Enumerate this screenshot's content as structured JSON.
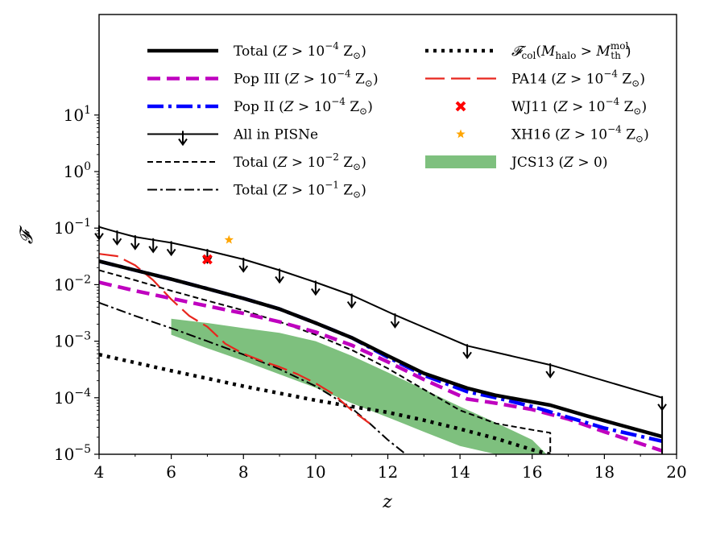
{
  "chart_data": {
    "type": "line",
    "xlabel": "z",
    "ylabel": "𝓕",
    "xlim": [
      4,
      20
    ],
    "ylim": [
      1e-05,
      600
    ],
    "yscale": "log",
    "x_ticks": [
      4,
      6,
      8,
      10,
      12,
      14,
      16,
      18,
      20
    ],
    "x_tick_labels": [
      "4",
      "6",
      "8",
      "10",
      "12",
      "14",
      "16",
      "18",
      "20"
    ],
    "y_ticks": [
      1e-05,
      0.0001,
      0.001,
      0.01,
      0.1,
      1,
      10
    ],
    "y_tick_labels": [
      {
        "base": "10",
        "exp": "−5"
      },
      {
        "base": "10",
        "exp": "−4"
      },
      {
        "base": "10",
        "exp": "−3"
      },
      {
        "base": "10",
        "exp": "−2"
      },
      {
        "base": "10",
        "exp": "−1"
      },
      {
        "base": "10",
        "exp": "0"
      },
      {
        "base": "10",
        "exp": "1"
      }
    ],
    "grid": false,
    "legend_position": "top (two columns)",
    "series": [
      {
        "name": "Total (Z > 10⁻⁴ Z☉)",
        "label": {
          "main": "Total (",
          "var": "Z",
          "rel": " > 10",
          "exp": "−4",
          "unit": " Z",
          "sub": "⊙",
          "close": ")"
        },
        "style": "solid-thick",
        "color": "#000000",
        "x": [
          4,
          5,
          6,
          7,
          8,
          9,
          10,
          11,
          12,
          13,
          14.2,
          15,
          16.5,
          17.5,
          18.5,
          19.6
        ],
        "y": [
          0.026,
          0.018,
          0.0125,
          0.0085,
          0.0057,
          0.0037,
          0.0021,
          0.00115,
          0.00055,
          0.00027,
          0.000148,
          0.00011,
          7.4e-05,
          4.8e-05,
          3.2e-05,
          2.05e-05
        ]
      },
      {
        "name": "Pop III (Z > 10⁻⁴ Z☉)",
        "label": {
          "main": "Pop III (",
          "var": "Z",
          "rel": " > 10",
          "exp": "−4",
          "unit": " Z",
          "sub": "⊙",
          "close": ")"
        },
        "style": "dashed-thick",
        "color": "#bf00bf",
        "x": [
          4,
          5,
          6,
          7,
          8,
          9,
          10,
          11,
          12,
          13,
          14.2,
          15,
          16,
          17,
          18,
          19.6
        ],
        "y": [
          0.011,
          0.0078,
          0.0057,
          0.0042,
          0.0031,
          0.0022,
          0.00145,
          0.00085,
          0.00043,
          0.00021,
          9.5e-05,
          8e-05,
          6.2e-05,
          4.2e-05,
          2.5e-05,
          1.15e-05
        ]
      },
      {
        "name": "Pop II (Z > 10⁻⁴ Z☉)",
        "label": {
          "main": "Pop II (",
          "var": "Z",
          "rel": " > 10",
          "exp": "−4",
          "unit": " Z",
          "sub": "⊙",
          "close": ")"
        },
        "style": "dashdot-thick",
        "color": "#0000ff",
        "x": [
          4,
          5,
          6,
          7,
          8,
          9,
          10,
          11,
          12,
          13,
          14.2,
          15,
          16,
          17,
          18,
          19.6
        ],
        "y": [
          0.026,
          0.018,
          0.0125,
          0.0085,
          0.0057,
          0.0037,
          0.0021,
          0.00115,
          0.00052,
          0.00025,
          0.000128,
          0.0001,
          7e-05,
          4.5e-05,
          2.9e-05,
          1.7e-05
        ]
      },
      {
        "name": "All in PISNe",
        "label": {
          "main": "All in PISNe"
        },
        "style": "solid-arrows",
        "color": "#000000",
        "x": [
          4,
          4.5,
          5,
          5.5,
          6,
          7,
          8,
          9,
          10,
          11,
          12.2,
          14.2,
          16.5,
          19.6
        ],
        "y": [
          0.105,
          0.085,
          0.07,
          0.062,
          0.055,
          0.04,
          0.028,
          0.018,
          0.011,
          0.0065,
          0.0029,
          0.00083,
          0.00038,
          0.0001
        ]
      },
      {
        "name": "Total (Z > 10⁻² Z☉)",
        "label": {
          "main": "Total (",
          "var": "Z",
          "rel": " > 10",
          "exp": "−2",
          "unit": " Z",
          "sub": "⊙",
          "close": ")"
        },
        "style": "dashed-thin",
        "color": "#000000",
        "x": [
          4,
          5,
          6,
          7,
          8,
          9,
          10,
          11,
          12,
          13,
          14,
          15,
          16,
          16.5,
          16.5
        ],
        "y": [
          0.018,
          0.012,
          0.0078,
          0.0052,
          0.0035,
          0.0022,
          0.0013,
          0.0007,
          0.00033,
          0.00014,
          6e-05,
          3.5e-05,
          2.7e-05,
          2.4e-05,
          1e-05
        ]
      },
      {
        "name": "Total (Z > 10⁻¹ Z☉)",
        "label": {
          "main": "Total (",
          "var": "Z",
          "rel": " > 10",
          "exp": "−1",
          "unit": " Z",
          "sub": "⊙",
          "close": ")"
        },
        "style": "dashdot-thin",
        "color": "#000000",
        "x": [
          4,
          5,
          6,
          7,
          8,
          9,
          10,
          11,
          11.5,
          12,
          12.5
        ],
        "y": [
          0.0048,
          0.0028,
          0.0017,
          0.001,
          0.00058,
          0.00032,
          0.00016,
          6.5e-05,
          3.5e-05,
          1.8e-05,
          1e-05
        ]
      },
      {
        "name": "𝓕col(Mhalo > Mth mol)",
        "label": {
          "fcol": true
        },
        "style": "dotted-thick",
        "color": "#000000",
        "x": [
          4,
          6,
          8,
          10,
          11,
          12,
          13,
          14,
          15,
          16,
          16.5
        ],
        "y": [
          0.00058,
          0.0003,
          0.00016,
          9e-05,
          7e-05,
          5.5e-05,
          4e-05,
          2.8e-05,
          1.9e-05,
          1.2e-05,
          1e-05
        ]
      },
      {
        "name": "PA14 (Z > 10⁻⁴ Z☉)",
        "label": {
          "main": "PA14 (",
          "var": "Z",
          "rel": " > 10",
          "exp": "−4",
          "unit": " Z",
          "sub": "⊙",
          "close": ")"
        },
        "style": "longdash",
        "color": "#e8261e",
        "x": [
          4,
          4.5,
          5,
          5.5,
          6,
          6.5,
          7,
          7.5,
          8,
          8.5,
          9,
          9.5,
          10,
          10.5,
          11,
          11.5
        ],
        "y": [
          0.035,
          0.032,
          0.022,
          0.012,
          0.0055,
          0.0028,
          0.0018,
          0.0009,
          0.0006,
          0.00045,
          0.00035,
          0.00026,
          0.00018,
          0.000115,
          6e-05,
          3.5e-05
        ]
      }
    ],
    "points": [
      {
        "name": "WJ11 (Z > 10⁻⁴ Z☉)",
        "label": {
          "main": "WJ11 (",
          "var": "Z",
          "rel": " > 10",
          "exp": "−4",
          "unit": " Z",
          "sub": "⊙",
          "close": ")"
        },
        "marker": "x",
        "color": "#ff0000",
        "x": 7.0,
        "y": 0.028
      },
      {
        "name": "XH16 (Z > 10⁻⁴ Z☉)",
        "label": {
          "main": "XH16 (",
          "var": "Z",
          "rel": " > 10",
          "exp": "−4",
          "unit": " Z",
          "sub": "⊙",
          "close": ")"
        },
        "marker": "star",
        "color": "#ffa500",
        "x": 7.6,
        "y": 0.062
      }
    ],
    "band": {
      "name": "JCS13 (Z > 0)",
      "label": {
        "main": "JCS13 (",
        "var": "Z",
        "rel": " > 0)"
      },
      "color": "#7ec07e",
      "x": [
        6,
        7,
        8,
        9,
        10,
        11,
        12,
        13,
        14,
        15,
        16,
        16.4
      ],
      "upper": [
        0.0025,
        0.0021,
        0.0017,
        0.0014,
        0.001,
        0.00055,
        0.00028,
        0.00014,
        7e-05,
        3.6e-05,
        1.8e-05,
        1e-05
      ],
      "lower": [
        0.0013,
        0.00075,
        0.00045,
        0.00026,
        0.00015,
        8e-05,
        4.5e-05,
        2.5e-05,
        1.4e-05,
        1e-05,
        1e-05,
        1e-05
      ]
    }
  }
}
